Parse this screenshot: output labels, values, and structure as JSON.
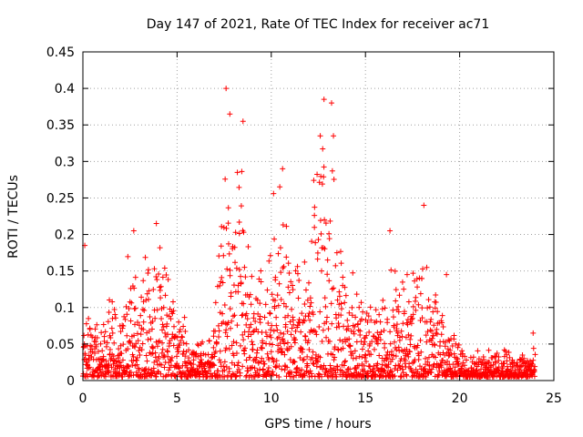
{
  "chart_data": {
    "type": "scatter",
    "title": "Day 147 of 2021, Rate Of TEC Index for receiver ac71",
    "xlabel": "GPS time / hours",
    "ylabel": "ROTI / TECUs",
    "xlim": [
      0,
      25
    ],
    "ylim": [
      0,
      0.45
    ],
    "x_ticks": [
      0,
      5,
      10,
      15,
      20,
      25
    ],
    "x_tick_labels": [
      "0",
      "5",
      "10",
      "15",
      "20",
      "25"
    ],
    "y_ticks": [
      0,
      0.05,
      0.1,
      0.15,
      0.2,
      0.25,
      0.3,
      0.35,
      0.4,
      0.45
    ],
    "y_tick_labels": [
      "0",
      "0.05",
      "0.1",
      "0.15",
      "0.2",
      "0.25",
      "0.3",
      "0.35",
      "0.4",
      "0.45"
    ],
    "grid": true,
    "marker": "plus",
    "color": "#ff0000",
    "envelope": {
      "x": [
        0,
        0.2,
        0.5,
        1.0,
        1.5,
        2.0,
        2.5,
        3.0,
        3.5,
        4.0,
        4.5,
        5.0,
        5.5,
        6.0,
        6.5,
        7.0,
        7.5,
        8.0,
        8.5,
        9.0,
        9.5,
        10.0,
        10.5,
        11.0,
        11.5,
        12.0,
        12.5,
        13.0,
        13.5,
        14.0,
        14.5,
        15.0,
        15.5,
        16.0,
        16.5,
        17.0,
        17.5,
        18.0,
        18.5,
        19.0,
        19.5,
        20.0,
        20.5,
        21.0,
        21.5,
        22.0,
        22.5,
        23.0,
        23.5,
        24.0
      ],
      "y": [
        0.04,
        0.18,
        0.1,
        0.06,
        0.12,
        0.09,
        0.2,
        0.14,
        0.18,
        0.21,
        0.16,
        0.1,
        0.09,
        0.05,
        0.06,
        0.14,
        0.3,
        0.35,
        0.33,
        0.18,
        0.16,
        0.26,
        0.28,
        0.22,
        0.16,
        0.2,
        0.36,
        0.35,
        0.26,
        0.18,
        0.14,
        0.12,
        0.1,
        0.14,
        0.19,
        0.16,
        0.18,
        0.2,
        0.14,
        0.12,
        0.08,
        0.05,
        0.03,
        0.04,
        0.05,
        0.04,
        0.04,
        0.03,
        0.05,
        0.04
      ]
    },
    "outliers": [
      {
        "x": 0.1,
        "y": 0.185
      },
      {
        "x": 2.7,
        "y": 0.205
      },
      {
        "x": 3.9,
        "y": 0.215
      },
      {
        "x": 7.6,
        "y": 0.4
      },
      {
        "x": 7.8,
        "y": 0.365
      },
      {
        "x": 8.5,
        "y": 0.355
      },
      {
        "x": 10.6,
        "y": 0.29
      },
      {
        "x": 12.6,
        "y": 0.335
      },
      {
        "x": 12.8,
        "y": 0.385
      },
      {
        "x": 13.2,
        "y": 0.38
      },
      {
        "x": 13.3,
        "y": 0.335
      },
      {
        "x": 16.3,
        "y": 0.205
      },
      {
        "x": 18.1,
        "y": 0.24
      },
      {
        "x": 19.3,
        "y": 0.145
      },
      {
        "x": 23.9,
        "y": 0.065
      }
    ]
  }
}
